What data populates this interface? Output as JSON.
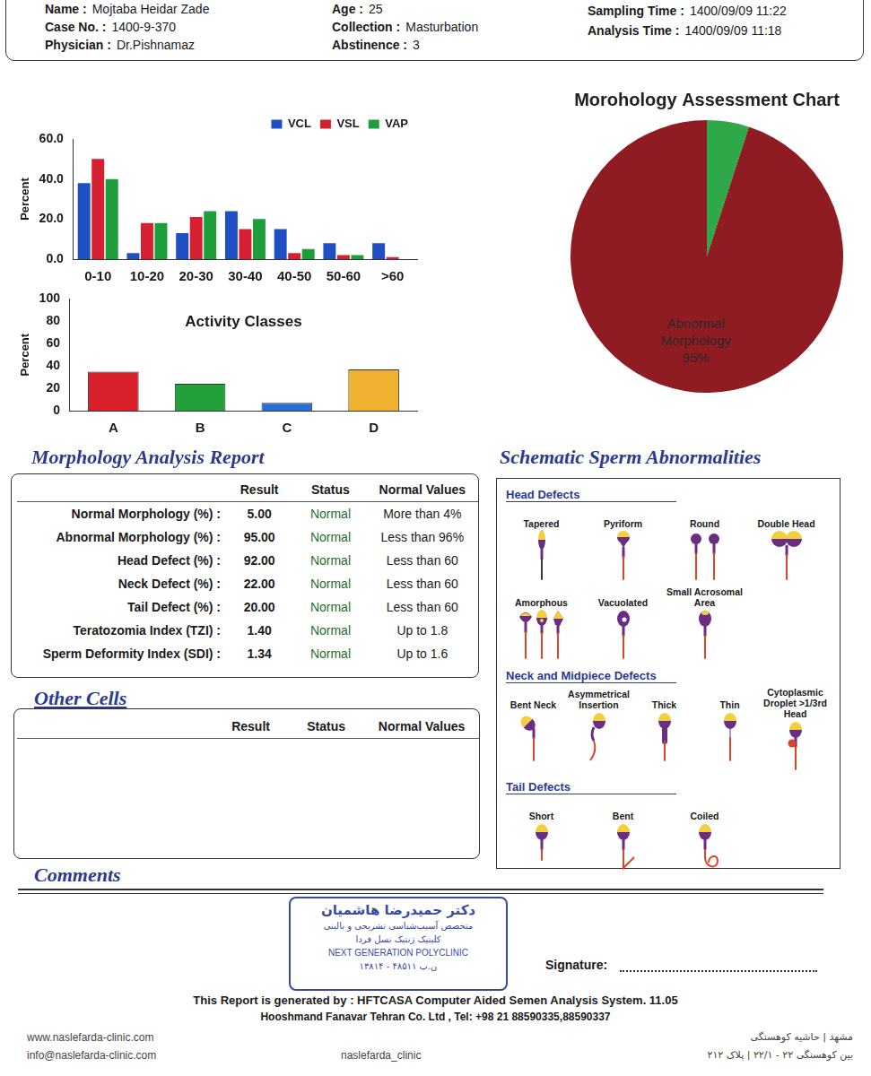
{
  "header": {
    "fields": [
      {
        "label": "Name :",
        "value": "Mojtaba Heidar Zade"
      },
      {
        "label": "Case No. :",
        "value": "1400-9-370"
      },
      {
        "label": "Physician :",
        "value": "Dr.Pishnamaz"
      },
      {
        "label": "Age :",
        "value": "25"
      },
      {
        "label": "Collection :",
        "value": "Masturbation"
      },
      {
        "label": "Abstinence :",
        "value": "3"
      },
      {
        "label": "Sampling Time :",
        "value": "1400/09/09  11:22"
      },
      {
        "label": "Analysis Time :",
        "value": "1400/09/09  11:18"
      }
    ]
  },
  "chart_data": [
    {
      "type": "bar",
      "categories": [
        "0-10",
        "10-20",
        "20-30",
        "30-40",
        "40-50",
        "50-60",
        ">60"
      ],
      "series": [
        {
          "name": "VCL",
          "color": "#1f4fc4",
          "values": [
            38,
            3,
            13,
            24,
            15,
            8,
            8
          ]
        },
        {
          "name": "VSL",
          "color": "#d42030",
          "values": [
            50,
            18,
            21,
            15,
            3,
            2,
            1
          ]
        },
        {
          "name": "VAP",
          "color": "#1e9e3a",
          "values": [
            40,
            18,
            24,
            20,
            5,
            2,
            0
          ]
        }
      ],
      "ylabel": "Percent",
      "ylim": [
        0,
        60
      ],
      "yticks": [
        {
          "value": 0,
          "label": "0.0"
        },
        {
          "value": 20,
          "label": "20.0"
        },
        {
          "value": 40,
          "label": "40.0"
        },
        {
          "value": 60,
          "label": "60.0"
        }
      ],
      "grid": false,
      "legend": "top right"
    },
    {
      "type": "bar",
      "title": "Activity Classes",
      "categories": [
        "A",
        "B",
        "C",
        "D"
      ],
      "values": [
        35,
        24,
        7,
        37
      ],
      "colors": [
        "#d9202a",
        "#22a03a",
        "#2a6fd4",
        "#f0b030"
      ],
      "ylabel": "Percent",
      "ylim": [
        0,
        100
      ],
      "yticks": [
        0,
        20,
        40,
        60,
        80,
        100
      ],
      "grid": false
    },
    {
      "type": "pie",
      "title": "Morohology Assessment Chart",
      "categories": [
        null,
        "Abnormal Morphology"
      ],
      "values": [
        5,
        95
      ],
      "colors": [
        "#2fa84a",
        "#8e1c22"
      ],
      "value_labels": [
        null,
        "95%"
      ]
    }
  ],
  "morphology_report": {
    "title": "Morphology Analysis Report",
    "columns": [
      "Result",
      "Status",
      "Normal Values"
    ],
    "rows": [
      [
        "Normal Morphology (%) :",
        "5.00",
        "Normal",
        "More than  4%"
      ],
      [
        "Abnormal Morphology (%) :",
        "95.00",
        "Normal",
        "Less than  96%"
      ],
      [
        "Head Defect (%) :",
        "92.00",
        "Normal",
        "Less than  60"
      ],
      [
        "Neck Defect (%) :",
        "22.00",
        "Normal",
        "Less than  60"
      ],
      [
        "Tail Defect (%) :",
        "20.00",
        "Normal",
        "Less than  60"
      ],
      [
        "Teratozomia Index (TZI) :",
        "1.40",
        "Normal",
        "Up to 1.8"
      ],
      [
        "Sperm Deformity Index (SDI) :",
        "1.34",
        "Normal",
        "Up to 1.6"
      ]
    ]
  },
  "other_cells": {
    "title": "Other Cells",
    "columns": [
      "Result",
      "Status",
      "Normal Values"
    ],
    "rows": []
  },
  "schematic": {
    "title": "Schematic Sperm Abnormalities",
    "sections": [
      {
        "title": "Head Defects",
        "items": [
          "Tapered",
          "Pyriform",
          "Round",
          "Double Head",
          "Amorphous",
          "Vacuolated",
          "Small Acrosomal Area"
        ]
      },
      {
        "title": "Neck and Midpiece Defects",
        "items": [
          "Bent Neck",
          "Asymmetrical Insertion",
          "Thick",
          "Thin",
          "Cytoplasmic Droplet >1/3rd Head"
        ]
      },
      {
        "title": "Tail Defects",
        "items": [
          "Short",
          "Bent",
          "Coiled"
        ]
      }
    ]
  },
  "comments": {
    "title": "Comments"
  },
  "stamp": {
    "lines": [
      "دکتر حمیدرضا هاشمیان",
      "متخصص آسیب‌شناسی تشریحی و بالینی",
      "کلینیک ژنتیک نسل فردا",
      "NEXT GENERATION POLYCLINIC",
      "ن.پ ۴۸۵۱۱ - ۱۳۸۱۴"
    ]
  },
  "signature": {
    "label": "Signature:"
  },
  "footer": {
    "system": "This Report is generated by : HFTCASA Computer Aided Semen Analysis System. 11.05",
    "company": "Hooshmand Fanavar Tehran Co. Ltd , Tel: +98 21 88590335,88590337",
    "website": "www.naslefarda-clinic.com",
    "email": "info@naslefarda-clinic.com",
    "instagram": "naslefarda_clinic",
    "address": [
      "مشهد | حاشیه کوهسنگی",
      "بین کوهسنگی ۲۲ - ۲۲/۱ | پلاک ۲۱۲"
    ]
  }
}
